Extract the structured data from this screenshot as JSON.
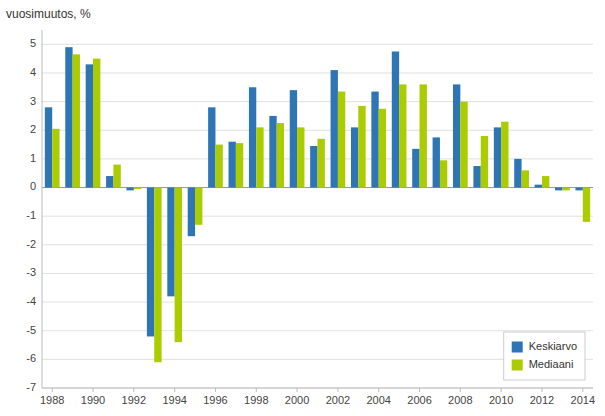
{
  "chart_data": {
    "type": "bar",
    "ylabel": "vuosimuutos, %",
    "categories": [
      "1988",
      null,
      "1990",
      null,
      "1992",
      null,
      "1994",
      null,
      "1996",
      null,
      "1998",
      null,
      "2000",
      null,
      "2002",
      null,
      "2004",
      null,
      "2006",
      null,
      "2008",
      null,
      "2010",
      null,
      "2012",
      null,
      "2014"
    ],
    "series": [
      {
        "name": "Keskiarvo",
        "color": "#2E75B6",
        "values": [
          2.8,
          4.9,
          4.3,
          0.4,
          -0.1,
          -5.2,
          -3.8,
          -1.7,
          2.8,
          1.6,
          3.5,
          2.5,
          3.4,
          1.45,
          4.1,
          2.1,
          3.35,
          4.75,
          1.35,
          1.75,
          3.6,
          0.75,
          2.1,
          1.0,
          0.1,
          -0.1,
          -0.1
        ]
      },
      {
        "name": "Mediaani",
        "color": "#AACC00",
        "values": [
          2.05,
          4.65,
          4.5,
          0.8,
          -0.05,
          -6.1,
          -5.4,
          -1.3,
          1.5,
          1.55,
          2.1,
          2.25,
          2.1,
          1.7,
          3.35,
          2.85,
          2.75,
          3.6,
          3.6,
          0.95,
          3.0,
          1.8,
          2.3,
          0.6,
          0.4,
          -0.1,
          -1.2
        ]
      }
    ],
    "ylim": [
      -7,
      5.5
    ],
    "yticks": [
      -7,
      -6,
      -5,
      -4,
      -3,
      -2,
      -1,
      0,
      1,
      2,
      3,
      4,
      5
    ],
    "grid": true,
    "legend": "lower right"
  }
}
